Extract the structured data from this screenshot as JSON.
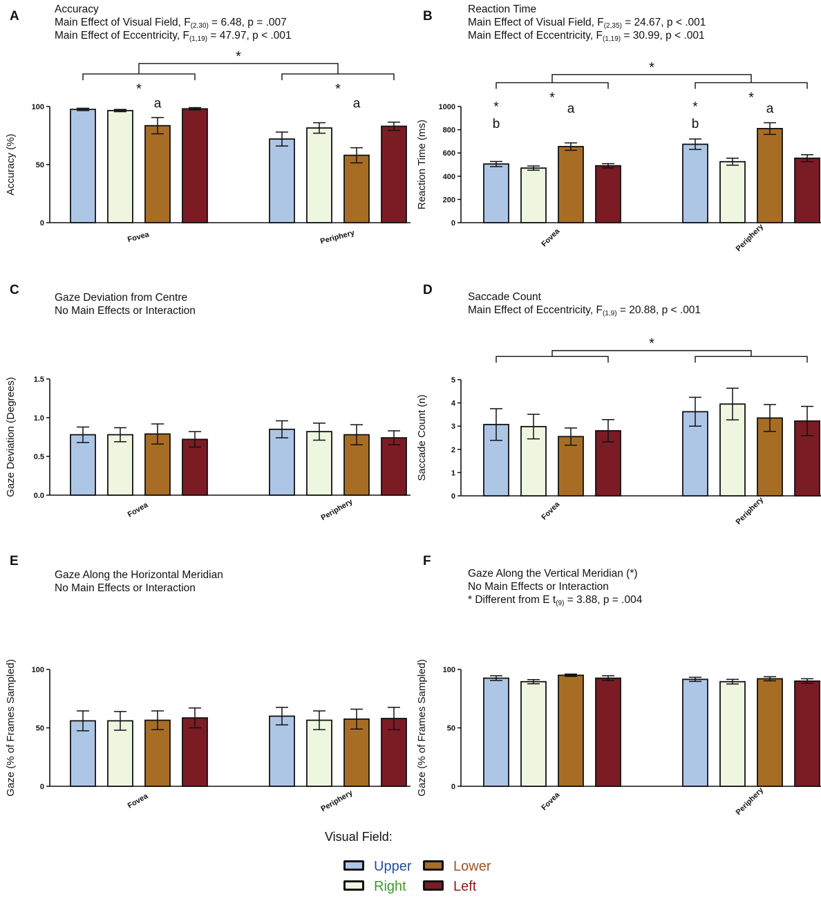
{
  "colors": {
    "upper": "#aec6e6",
    "right": "#eff6e0",
    "lower": "#a86d25",
    "left": "#7b1c24",
    "upper_text": "#1f4fa0",
    "right_text": "#3d9a2a",
    "lower_text": "#a0521d",
    "left_text": "#8c1c1c",
    "axis": "#111111"
  },
  "panels": [
    {
      "letter": "A",
      "title": "Accuracy",
      "lines": [
        {
          "pre": "Main Effect of Visual Field, F",
          "sub": "(2,30)",
          "post": " = 6.48, p = .007"
        },
        {
          "pre": "Main Effect of Eccentricity, F",
          "sub": "(1,19)",
          "post": " = 47.97, p < .001"
        }
      ]
    },
    {
      "letter": "B",
      "title": "Reaction Time",
      "lines": [
        {
          "pre": "Main Effect of Visual Field, F",
          "sub": "(2,35)",
          "post": " = 24.67, p < .001"
        },
        {
          "pre": "Main Effect of Eccentricity, F",
          "sub": "(1,19)",
          "post": " = 30.99, p < .001"
        }
      ]
    },
    {
      "letter": "C",
      "title": "Gaze Deviation from Centre",
      "lines": [
        {
          "pre": "No Main Effects or Interaction",
          "sub": "",
          "post": ""
        }
      ]
    },
    {
      "letter": "D",
      "title": "Saccade Count",
      "lines": [
        {
          "pre": "Main Effect of Eccentricity, F",
          "sub": "(1,9)",
          "post": " = 20.88, p < .001"
        }
      ]
    },
    {
      "letter": "E",
      "title": "Gaze Along the Horizontal Meridian",
      "lines": [
        {
          "pre": "No Main Effects or Interaction",
          "sub": "",
          "post": ""
        }
      ]
    },
    {
      "letter": "F",
      "title": "Gaze Along the Vertical Meridian (*)",
      "lines": [
        {
          "pre": "No Main Effects or Interaction",
          "sub": "",
          "post": ""
        },
        {
          "pre": "* Different from E t",
          "sub": "(9)",
          "post": " = 3.88, p = .004"
        }
      ]
    }
  ],
  "legend": {
    "title": "Visual Field:",
    "items": [
      "Upper",
      "Lower",
      "Right",
      "Left"
    ]
  },
  "chart_data": [
    {
      "panel": "A",
      "type": "bar",
      "categories": [
        "Fovea",
        "Periphery"
      ],
      "series_names": [
        "Upper",
        "Right",
        "Lower",
        "Left"
      ],
      "values": [
        [
          97.5,
          96.5,
          83.5,
          98
        ],
        [
          72,
          81.5,
          58,
          83
        ]
      ],
      "errors": [
        [
          1,
          1,
          7,
          1
        ],
        [
          6,
          4.5,
          6.5,
          3.5
        ]
      ],
      "ylabel": "Accuracy (%)",
      "ylim": [
        0,
        100
      ],
      "yticks": [
        0,
        50,
        100
      ],
      "ytick_labels": [
        "0",
        "50",
        "100"
      ],
      "annotations": [
        {
          "text": "a",
          "category": 0,
          "bar": 2,
          "value": 99
        },
        {
          "text": "a",
          "category": 1,
          "bar": 2,
          "value": 99
        }
      ],
      "brackets": [
        {
          "kind": "group",
          "category": 0,
          "value": 128,
          "label": "*"
        },
        {
          "kind": "group",
          "category": 1,
          "value": 128,
          "label": "*"
        },
        {
          "kind": "across",
          "value": 137,
          "label": "*"
        }
      ]
    },
    {
      "panel": "B",
      "type": "bar",
      "categories": [
        "Fovea",
        "Periphery"
      ],
      "series_names": [
        "Upper",
        "Right",
        "Lower",
        "Left"
      ],
      "values": [
        [
          505,
          470,
          655,
          490
        ],
        [
          675,
          525,
          810,
          555
        ]
      ],
      "errors": [
        [
          22,
          18,
          32,
          18
        ],
        [
          45,
          30,
          50,
          30
        ]
      ],
      "ylabel": "Reaction Time (ms)",
      "ylim": [
        0,
        1000
      ],
      "yticks": [
        0,
        200,
        400,
        600,
        800,
        1000
      ],
      "ytick_labels": [
        "0",
        "200",
        "400",
        "600",
        "800",
        "1000"
      ],
      "annotations": [
        {
          "text": "b",
          "category": 0,
          "bar": 0,
          "value": 815
        },
        {
          "text": "*",
          "category": 0,
          "bar": 0,
          "value": 960
        },
        {
          "text": "a",
          "category": 0,
          "bar": 2,
          "value": 945
        },
        {
          "text": "b",
          "category": 1,
          "bar": 0,
          "value": 815
        },
        {
          "text": "*",
          "category": 1,
          "bar": 0,
          "value": 960
        },
        {
          "text": "a",
          "category": 1,
          "bar": 2,
          "value": 945
        }
      ],
      "brackets": [
        {
          "kind": "group",
          "category": 0,
          "value": 1205,
          "label": "*"
        },
        {
          "kind": "group",
          "category": 1,
          "value": 1205,
          "label": "*"
        },
        {
          "kind": "across",
          "value": 1275,
          "label": "*"
        }
      ]
    },
    {
      "panel": "C",
      "type": "bar",
      "categories": [
        "Fovea",
        "Periphery"
      ],
      "series_names": [
        "Upper",
        "Right",
        "Lower",
        "Left"
      ],
      "values": [
        [
          0.78,
          0.78,
          0.79,
          0.72
        ],
        [
          0.85,
          0.82,
          0.78,
          0.74
        ]
      ],
      "errors": [
        [
          0.1,
          0.09,
          0.13,
          0.1
        ],
        [
          0.11,
          0.11,
          0.13,
          0.09
        ]
      ],
      "ylabel": "Gaze Deviation (Degrees)",
      "ylim": [
        0,
        1.5
      ],
      "yticks": [
        0,
        0.5,
        1,
        1.5
      ],
      "ytick_labels": [
        "0.0",
        "0.5",
        "1.0",
        "1.5"
      ],
      "annotations": [],
      "brackets": []
    },
    {
      "panel": "D",
      "type": "bar",
      "categories": [
        "Fovea",
        "Periphery"
      ],
      "series_names": [
        "Upper",
        "Right",
        "Lower",
        "Left"
      ],
      "values": [
        [
          3.07,
          2.98,
          2.55,
          2.8
        ],
        [
          3.62,
          3.95,
          3.35,
          3.22
        ]
      ],
      "errors": [
        [
          0.68,
          0.53,
          0.37,
          0.48
        ],
        [
          0.62,
          0.68,
          0.58,
          0.63
        ]
      ],
      "ylabel": "Saccade Count (n)",
      "ylim": [
        0,
        5
      ],
      "yticks": [
        0,
        1,
        2,
        3,
        4,
        5
      ],
      "ytick_labels": [
        "0",
        "1",
        "2",
        "3",
        "4",
        "5"
      ],
      "annotations": [],
      "brackets": [
        {
          "kind": "group",
          "category": 0,
          "value": 6.0,
          "label": ""
        },
        {
          "kind": "group",
          "category": 1,
          "value": 6.0,
          "label": ""
        },
        {
          "kind": "across",
          "value": 6.25,
          "label": "*"
        }
      ]
    },
    {
      "panel": "E",
      "type": "bar",
      "categories": [
        "Fovea",
        "Periphery"
      ],
      "series_names": [
        "Upper",
        "Right",
        "Lower",
        "Left"
      ],
      "values": [
        [
          56,
          56,
          56.5,
          58.5
        ],
        [
          60,
          56.5,
          57.5,
          58
        ]
      ],
      "errors": [
        [
          8.5,
          8,
          8,
          8.5
        ],
        [
          7.5,
          8,
          8.5,
          9.5
        ]
      ],
      "ylabel": "Gaze (% of Frames Sampled)",
      "ylim": [
        0,
        100
      ],
      "yticks": [
        0,
        50,
        100
      ],
      "ytick_labels": [
        "0",
        "50",
        "100"
      ],
      "annotations": [],
      "brackets": []
    },
    {
      "panel": "F",
      "type": "bar",
      "categories": [
        "Fovea",
        "Periphery"
      ],
      "series_names": [
        "Upper",
        "Right",
        "Lower",
        "Left"
      ],
      "values": [
        [
          92.5,
          89.5,
          95,
          92.5
        ],
        [
          91.5,
          89.5,
          92,
          90
        ]
      ],
      "errors": [
        [
          2,
          1.8,
          1,
          2
        ],
        [
          1.8,
          2,
          1.8,
          2
        ]
      ],
      "ylabel": "Gaze (% of Frames Sampled)",
      "ylim": [
        0,
        100
      ],
      "yticks": [
        0,
        50,
        100
      ],
      "ytick_labels": [
        "0",
        "50",
        "100"
      ],
      "annotations": [],
      "brackets": []
    }
  ]
}
